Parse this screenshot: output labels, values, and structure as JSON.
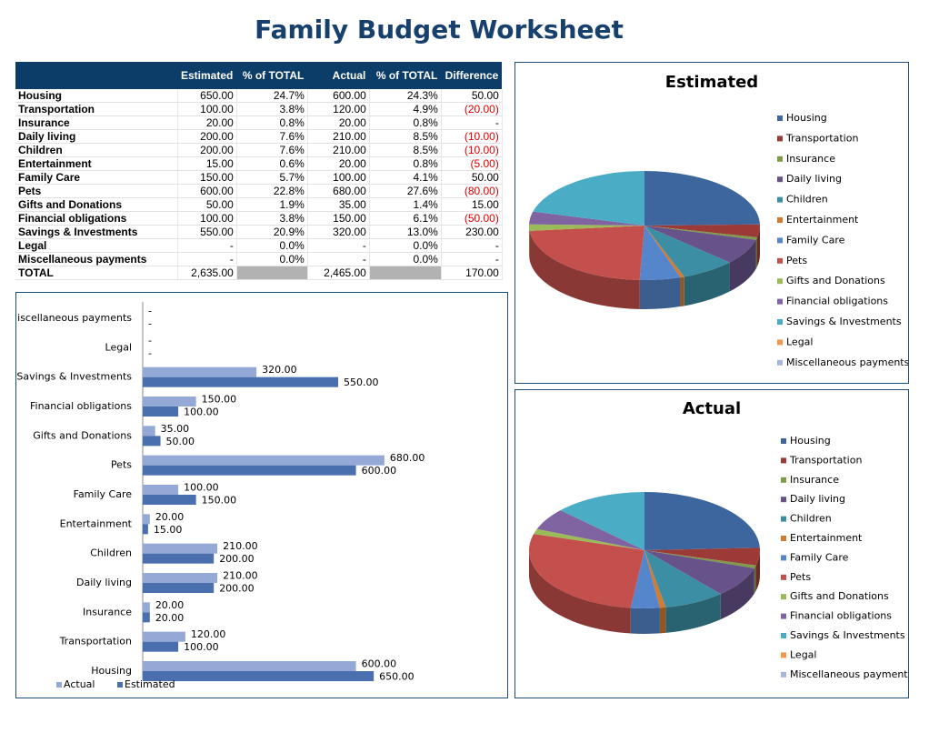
{
  "title": "Family Budget Worksheet",
  "table": {
    "columns": [
      "Estimated",
      "% of TOTAL",
      "Actual",
      "% of TOTAL",
      "Difference"
    ],
    "rows": [
      [
        "Housing",
        "650.00",
        "24.7%",
        "600.00",
        "24.3%",
        "50.00"
      ],
      [
        "Transportation",
        "100.00",
        "3.8%",
        "120.00",
        "4.9%",
        "(20.00)"
      ],
      [
        "Insurance",
        "20.00",
        "0.8%",
        "20.00",
        "0.8%",
        "-"
      ],
      [
        "Daily living",
        "200.00",
        "7.6%",
        "210.00",
        "8.5%",
        "(10.00)"
      ],
      [
        "Children",
        "200.00",
        "7.6%",
        "210.00",
        "8.5%",
        "(10.00)"
      ],
      [
        "Entertainment",
        "15.00",
        "0.6%",
        "20.00",
        "0.8%",
        "(5.00)"
      ],
      [
        "Family Care",
        "150.00",
        "5.7%",
        "100.00",
        "4.1%",
        "50.00"
      ],
      [
        "Pets",
        "600.00",
        "22.8%",
        "680.00",
        "27.6%",
        "(80.00)"
      ],
      [
        "Gifts and Donations",
        "50.00",
        "1.9%",
        "35.00",
        "1.4%",
        "15.00"
      ],
      [
        "Financial obligations",
        "100.00",
        "3.8%",
        "150.00",
        "6.1%",
        "(50.00)"
      ],
      [
        "Savings & Investments",
        "550.00",
        "20.9%",
        "320.00",
        "13.0%",
        "230.00"
      ],
      [
        "Legal",
        "-",
        "0.0%",
        "-",
        "0.0%",
        "-"
      ],
      [
        "Miscellaneous payments",
        "-",
        "0.0%",
        "-",
        "0.0%",
        "-"
      ]
    ],
    "total": [
      "TOTAL",
      "2,635.00",
      null,
      "2,465.00",
      null,
      "170.00"
    ]
  },
  "chart_data": [
    {
      "type": "bar",
      "orientation": "horizontal",
      "categories": [
        "Housing",
        "Transportation",
        "Insurance",
        "Daily living",
        "Children",
        "Entertainment",
        "Family Care",
        "Pets",
        "Gifts and Donations",
        "Financial obligations",
        "Savings & Investments",
        "Legal",
        "Miscellaneous payments"
      ],
      "series": [
        {
          "name": "Actual",
          "color": "#95a9d6",
          "values": [
            600,
            120,
            20,
            210,
            210,
            20,
            100,
            680,
            35,
            150,
            320,
            0,
            0
          ],
          "value_labels": [
            "600.00",
            "120.00",
            "20.00",
            "210.00",
            "210.00",
            "20.00",
            "100.00",
            "680.00",
            "35.00",
            "150.00",
            "320.00",
            "-",
            "-"
          ]
        },
        {
          "name": "Estimated",
          "color": "#4a6fae",
          "values": [
            650,
            100,
            20,
            200,
            200,
            15,
            150,
            600,
            50,
            100,
            550,
            0,
            0
          ],
          "value_labels": [
            "650.00",
            "100.00",
            "20.00",
            "200.00",
            "200.00",
            "15.00",
            "150.00",
            "600.00",
            "50.00",
            "100.00",
            "550.00",
            "-",
            "-"
          ]
        }
      ],
      "xlim": [
        0,
        1000
      ],
      "legend": "bottom-left"
    },
    {
      "type": "pie",
      "title": "Estimated",
      "categories": [
        "Housing",
        "Transportation",
        "Insurance",
        "Daily living",
        "Children",
        "Entertainment",
        "Family Care",
        "Pets",
        "Gifts and Donations",
        "Financial obligations",
        "Savings & Investments",
        "Legal",
        "Miscellaneous payments"
      ],
      "values": [
        650,
        100,
        20,
        200,
        200,
        15,
        150,
        600,
        50,
        100,
        550,
        0,
        0
      ],
      "colors": [
        "#3d669e",
        "#9c3a37",
        "#7f9a48",
        "#67528a",
        "#3b8ea3",
        "#d47b2e",
        "#5586cc",
        "#c4504d",
        "#9bbb59",
        "#8064a2",
        "#4bacc6",
        "#f79646",
        "#a5b6d9"
      ],
      "legend": "right"
    },
    {
      "type": "pie",
      "title": "Actual",
      "categories": [
        "Housing",
        "Transportation",
        "Insurance",
        "Daily living",
        "Children",
        "Entertainment",
        "Family Care",
        "Pets",
        "Gifts and Donations",
        "Financial obligations",
        "Savings & Investments",
        "Legal",
        "Miscellaneous payments"
      ],
      "values": [
        600,
        120,
        20,
        210,
        210,
        20,
        100,
        680,
        35,
        150,
        320,
        0,
        0
      ],
      "colors": [
        "#3d669e",
        "#9c3a37",
        "#7f9a48",
        "#67528a",
        "#3b8ea3",
        "#d47b2e",
        "#5586cc",
        "#c4504d",
        "#9bbb59",
        "#8064a2",
        "#4bacc6",
        "#f79646",
        "#a5b6d9"
      ],
      "legend": "right"
    }
  ]
}
